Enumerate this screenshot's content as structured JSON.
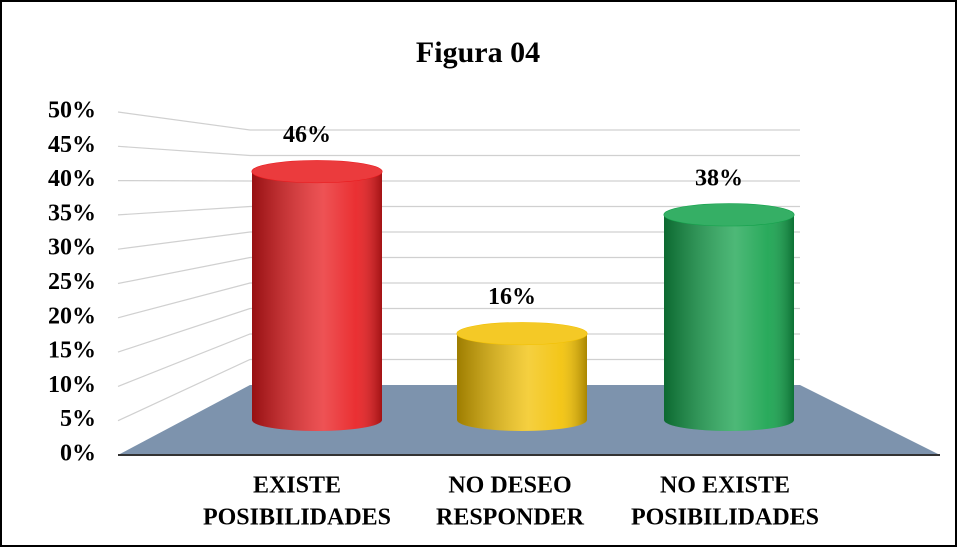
{
  "chart_data": {
    "type": "bar3d",
    "title": "Figura 04",
    "categories": [
      [
        "EXISTE",
        "POSIBILIDADES"
      ],
      [
        "NO DESEO",
        "RESPONDER"
      ],
      [
        "NO EXISTE",
        "POSIBILIDADES"
      ]
    ],
    "values": [
      46,
      16,
      38
    ],
    "value_labels": [
      "46%",
      "16%",
      "38%"
    ],
    "colors": [
      "#e8191c",
      "#f2c000",
      "#12a14a"
    ],
    "ylim": [
      0,
      50
    ],
    "yticks": [
      {
        "value": 0,
        "label": "0%"
      },
      {
        "value": 5,
        "label": "5%"
      },
      {
        "value": 10,
        "label": "10%"
      },
      {
        "value": 15,
        "label": "15%"
      },
      {
        "value": 20,
        "label": "20%"
      },
      {
        "value": 25,
        "label": "25%"
      },
      {
        "value": 30,
        "label": "30%"
      },
      {
        "value": 35,
        "label": "35%"
      },
      {
        "value": 40,
        "label": "40%"
      },
      {
        "value": 45,
        "label": "45%"
      },
      {
        "value": 50,
        "label": "50%"
      }
    ],
    "grid": true
  }
}
